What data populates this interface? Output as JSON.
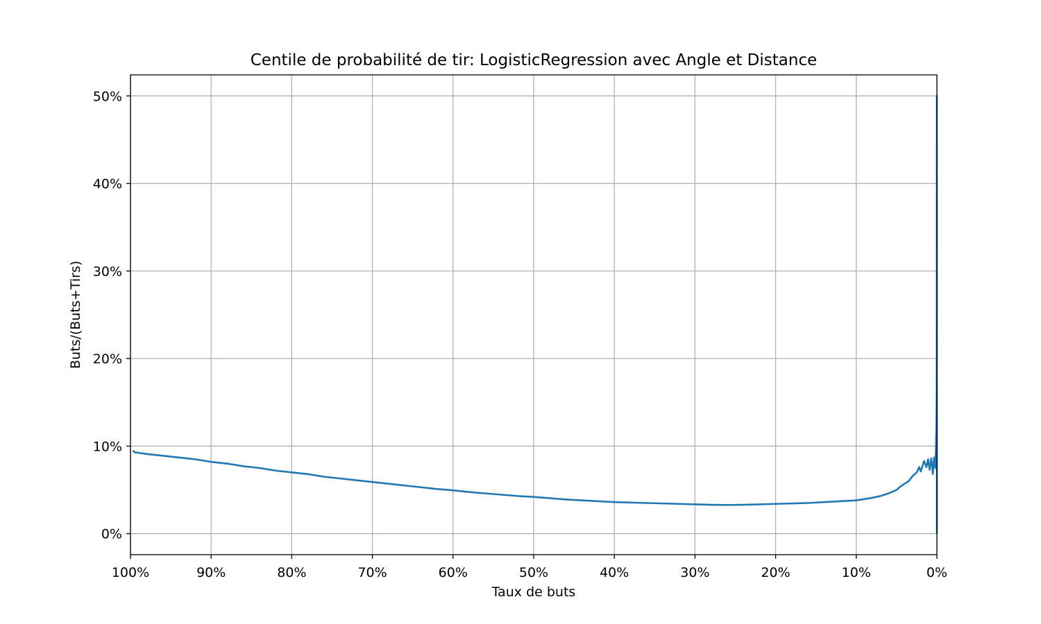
{
  "chart_data": {
    "type": "line",
    "title": "Centile de probabilité de tir: LogisticRegression avec Angle et Distance",
    "xlabel": "Taux de buts",
    "ylabel": "Buts/(Buts+Tirs)",
    "x_unit": "percent",
    "y_unit": "percent",
    "xlim": [
      100,
      0
    ],
    "ylim": [
      -2.4,
      52.4
    ],
    "x_inverted": true,
    "grid": true,
    "x_ticks": [
      {
        "value": 100,
        "label": "100%"
      },
      {
        "value": 90,
        "label": "90%"
      },
      {
        "value": 80,
        "label": "80%"
      },
      {
        "value": 70,
        "label": "70%"
      },
      {
        "value": 60,
        "label": "60%"
      },
      {
        "value": 50,
        "label": "50%"
      },
      {
        "value": 40,
        "label": "40%"
      },
      {
        "value": 30,
        "label": "30%"
      },
      {
        "value": 20,
        "label": "20%"
      },
      {
        "value": 10,
        "label": "10%"
      },
      {
        "value": 0,
        "label": "0%"
      }
    ],
    "y_ticks": [
      {
        "value": 0,
        "label": "0%"
      },
      {
        "value": 10,
        "label": "10%"
      },
      {
        "value": 20,
        "label": "20%"
      },
      {
        "value": 30,
        "label": "30%"
      },
      {
        "value": 40,
        "label": "40%"
      },
      {
        "value": 50,
        "label": "50%"
      }
    ],
    "series": [
      {
        "color": "#1f77b4",
        "x": [
          99.7,
          99.5,
          98,
          96,
          94,
          92,
          90,
          88,
          86,
          84,
          82,
          80,
          78,
          76,
          74,
          72,
          70,
          68,
          66,
          64,
          62,
          60,
          58,
          56,
          54,
          52,
          50,
          48,
          46,
          44,
          42,
          40,
          38,
          36,
          34,
          32,
          30,
          28,
          26,
          24,
          22,
          20,
          18,
          16,
          14,
          12,
          10,
          9,
          8,
          7,
          6,
          5,
          4.5,
          4,
          3.5,
          3,
          2.5,
          2.2,
          2,
          1.6,
          1.3,
          1.1,
          0.9,
          0.7,
          0.5,
          0.35,
          0.2,
          0.12,
          0.06,
          0.03,
          0.01,
          0.005,
          0.0
        ],
        "y": [
          9.5,
          9.3,
          9.1,
          8.9,
          8.7,
          8.5,
          8.2,
          8.0,
          7.7,
          7.5,
          7.2,
          7.0,
          6.8,
          6.5,
          6.3,
          6.1,
          5.9,
          5.7,
          5.5,
          5.3,
          5.1,
          4.95,
          4.75,
          4.6,
          4.45,
          4.3,
          4.2,
          4.05,
          3.9,
          3.8,
          3.7,
          3.6,
          3.55,
          3.5,
          3.45,
          3.4,
          3.35,
          3.3,
          3.28,
          3.3,
          3.35,
          3.4,
          3.45,
          3.5,
          3.6,
          3.7,
          3.8,
          3.95,
          4.1,
          4.3,
          4.6,
          5.0,
          5.4,
          5.7,
          6.0,
          6.6,
          7.0,
          7.6,
          7.1,
          8.3,
          7.6,
          8.5,
          7.3,
          8.6,
          6.8,
          8.7,
          7.5,
          9.8,
          12.5,
          15.0,
          25.0,
          50.0,
          0.0
        ]
      }
    ]
  }
}
